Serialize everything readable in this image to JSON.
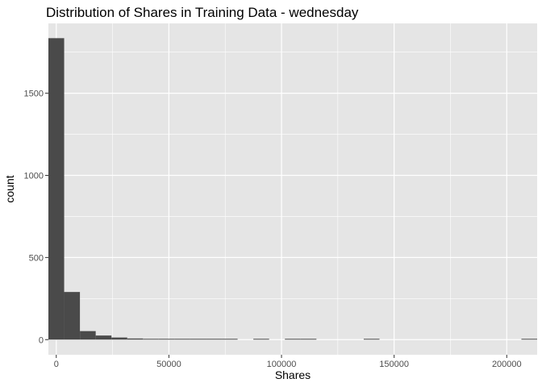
{
  "chart_data": {
    "type": "bar",
    "title": "Distribution of Shares in Training Data -  wednesday",
    "xlabel": "Shares",
    "ylabel": "count",
    "xlim": [
      -3500,
      213500
    ],
    "ylim": [
      -92,
      1925
    ],
    "xticks": [
      0,
      50000,
      100000,
      150000,
      200000
    ],
    "xtick_labels": [
      "0",
      "50000",
      "100000",
      "150000",
      "200000"
    ],
    "yticks": [
      0,
      500,
      1000,
      1500
    ],
    "ytick_labels": [
      "0",
      "500",
      "1000",
      "1500"
    ],
    "grid": true,
    "panel_color": "#e5e5e5",
    "grid_color": "#ffffff",
    "bar_color": "#4a4a4a",
    "bin_width": 7000,
    "bins": [
      {
        "start": -3500,
        "count": 1835
      },
      {
        "start": 3500,
        "count": 290
      },
      {
        "start": 10500,
        "count": 52
      },
      {
        "start": 17500,
        "count": 25
      },
      {
        "start": 24500,
        "count": 13
      },
      {
        "start": 31500,
        "count": 7
      },
      {
        "start": 38500,
        "count": 3
      },
      {
        "start": 45500,
        "count": 2
      },
      {
        "start": 52500,
        "count": 2
      },
      {
        "start": 59500,
        "count": 1
      },
      {
        "start": 66500,
        "count": 1
      },
      {
        "start": 73500,
        "count": 1
      },
      {
        "start": 87500,
        "count": 1
      },
      {
        "start": 101500,
        "count": 1
      },
      {
        "start": 108500,
        "count": 1
      },
      {
        "start": 136500,
        "count": 1
      },
      {
        "start": 206500,
        "count": 1
      }
    ]
  }
}
